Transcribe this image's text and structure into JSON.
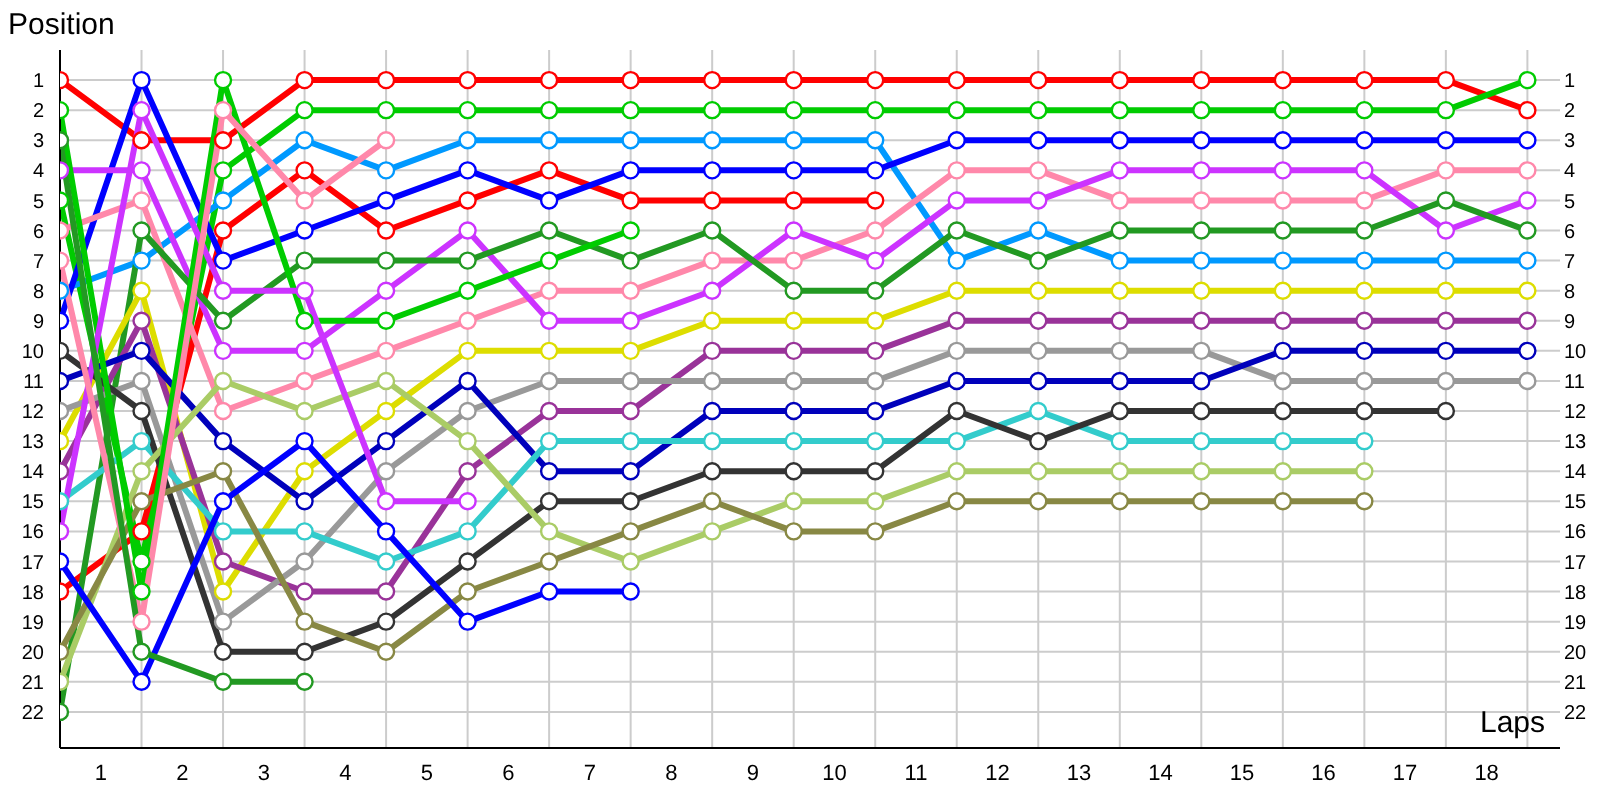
{
  "chart_data": {
    "type": "line",
    "xlabel": "Laps",
    "ylabel": "Position",
    "marker": "circle",
    "grid": true,
    "x": [
      0,
      1,
      2,
      3,
      4,
      5,
      6,
      7,
      8,
      9,
      10,
      11,
      12,
      13,
      14,
      15,
      16,
      17,
      18
    ],
    "xlim": [
      0,
      18.4
    ],
    "xticks": [
      {
        "value": 0,
        "label": null
      },
      {
        "value": 0.5,
        "label": "1"
      },
      {
        "value": 1,
        "label": null
      },
      {
        "value": 1.5,
        "label": "2"
      },
      {
        "value": 2,
        "label": null
      },
      {
        "value": 2.5,
        "label": "3"
      },
      {
        "value": 3,
        "label": null
      },
      {
        "value": 3.5,
        "label": "4"
      },
      {
        "value": 4,
        "label": null
      },
      {
        "value": 4.5,
        "label": "5"
      },
      {
        "value": 5,
        "label": null
      },
      {
        "value": 5.5,
        "label": "6"
      },
      {
        "value": 6,
        "label": null
      },
      {
        "value": 6.5,
        "label": "7"
      },
      {
        "value": 7,
        "label": null
      },
      {
        "value": 7.5,
        "label": "8"
      },
      {
        "value": 8,
        "label": null
      },
      {
        "value": 8.5,
        "label": "9"
      },
      {
        "value": 9,
        "label": null
      },
      {
        "value": 9.5,
        "label": "10"
      },
      {
        "value": 10,
        "label": null
      },
      {
        "value": 10.5,
        "label": "11"
      },
      {
        "value": 11,
        "label": null
      },
      {
        "value": 11.5,
        "label": "12"
      },
      {
        "value": 12,
        "label": null
      },
      {
        "value": 12.5,
        "label": "13"
      },
      {
        "value": 13,
        "label": null
      },
      {
        "value": 13.5,
        "label": "14"
      },
      {
        "value": 14,
        "label": null
      },
      {
        "value": 14.5,
        "label": "15"
      },
      {
        "value": 15,
        "label": null
      },
      {
        "value": 15.5,
        "label": "16"
      },
      {
        "value": 16,
        "label": null
      },
      {
        "value": 16.5,
        "label": "17"
      },
      {
        "value": 17,
        "label": null
      },
      {
        "value": 17.5,
        "label": "18"
      },
      {
        "value": 18,
        "label": null
      }
    ],
    "ylim": [
      23.2,
      0
    ],
    "yticks": [
      1,
      2,
      3,
      4,
      5,
      6,
      7,
      8,
      9,
      10,
      11,
      12,
      13,
      14,
      15,
      16,
      17,
      18,
      19,
      20,
      21,
      22
    ],
    "y2lim": [
      23.2,
      0
    ],
    "y2ticks": [
      1,
      2,
      3,
      4,
      5,
      6,
      7,
      8,
      9,
      10,
      11,
      12,
      13,
      14,
      15,
      16,
      17,
      18,
      19,
      20,
      21,
      22
    ],
    "series": [
      {
        "color": "#ff0000",
        "values": [
          1,
          3,
          3,
          1,
          1,
          1,
          1,
          1,
          1,
          1,
          1,
          1,
          1,
          1,
          1,
          1,
          1,
          1,
          2
        ]
      },
      {
        "color": "#00cc00",
        "values": [
          5,
          17,
          4,
          2,
          2,
          2,
          2,
          2,
          2,
          2,
          2,
          2,
          2,
          2,
          2,
          2,
          2,
          2,
          1
        ]
      },
      {
        "color": "#ff0000",
        "values": [
          18,
          16,
          6,
          4,
          6,
          5,
          4,
          5,
          5,
          5,
          5,
          null,
          null,
          null,
          null,
          null,
          null,
          null,
          null
        ]
      },
      {
        "color": "#0099ff",
        "values": [
          8,
          7,
          5,
          3,
          4,
          3,
          3,
          3,
          3,
          3,
          3,
          7,
          6,
          7,
          7,
          7,
          7,
          7,
          7
        ]
      },
      {
        "color": "#0000ff",
        "values": [
          9,
          1,
          7,
          6,
          5,
          4,
          5,
          4,
          4,
          4,
          4,
          3,
          3,
          3,
          3,
          3,
          3,
          3,
          3
        ]
      },
      {
        "color": "#ff88aa",
        "values": [
          6,
          5,
          12,
          11,
          10,
          9,
          8,
          8,
          7,
          7,
          6,
          4,
          4,
          5,
          5,
          5,
          5,
          4,
          4
        ]
      },
      {
        "color": "#cc33ff",
        "values": [
          4,
          4,
          10,
          10,
          8,
          6,
          9,
          9,
          8,
          6,
          7,
          5,
          5,
          4,
          4,
          4,
          4,
          6,
          5
        ]
      },
      {
        "color": "#229922",
        "values": [
          22,
          6,
          9,
          7,
          7,
          7,
          6,
          7,
          6,
          8,
          8,
          6,
          7,
          6,
          6,
          6,
          6,
          5,
          6
        ]
      },
      {
        "color": "#dddd00",
        "values": [
          13,
          8,
          18,
          14,
          12,
          10,
          10,
          10,
          9,
          9,
          9,
          8,
          8,
          8,
          8,
          8,
          8,
          8,
          8
        ]
      },
      {
        "color": "#993399",
        "values": [
          14,
          9,
          17,
          18,
          18,
          14,
          12,
          12,
          10,
          10,
          10,
          9,
          9,
          9,
          9,
          9,
          9,
          9,
          9
        ]
      },
      {
        "color": "#999999",
        "values": [
          12,
          11,
          19,
          17,
          14,
          12,
          11,
          11,
          11,
          11,
          11,
          10,
          10,
          10,
          10,
          11,
          11,
          11,
          11
        ]
      },
      {
        "color": "#0000bb",
        "values": [
          11,
          10,
          13,
          15,
          13,
          11,
          14,
          14,
          12,
          12,
          12,
          11,
          11,
          11,
          11,
          10,
          10,
          10,
          10
        ]
      },
      {
        "color": "#33cccc",
        "values": [
          15,
          13,
          16,
          16,
          17,
          16,
          13,
          13,
          13,
          13,
          13,
          13,
          12,
          13,
          13,
          13,
          13,
          null,
          null
        ]
      },
      {
        "color": "#333333",
        "values": [
          10,
          12,
          20,
          20,
          19,
          17,
          15,
          15,
          14,
          14,
          14,
          12,
          13,
          12,
          12,
          12,
          12,
          12,
          null
        ]
      },
      {
        "color": "#aacc66",
        "values": [
          21,
          14,
          11,
          12,
          11,
          13,
          16,
          17,
          16,
          15,
          15,
          14,
          14,
          14,
          14,
          14,
          14,
          null,
          null
        ]
      },
      {
        "color": "#888844",
        "values": [
          20,
          15,
          14,
          19,
          20,
          18,
          17,
          16,
          15,
          16,
          16,
          15,
          15,
          15,
          15,
          15,
          15,
          null,
          null
        ]
      },
      {
        "color": "#00cc00",
        "values": [
          2,
          18,
          1,
          9,
          9,
          8,
          7,
          6,
          null,
          null,
          null,
          null,
          null,
          null,
          null,
          null,
          null,
          null,
          null
        ]
      },
      {
        "color": "#0000ff",
        "values": [
          17,
          21,
          15,
          13,
          16,
          19,
          18,
          18,
          null,
          null,
          null,
          null,
          null,
          null,
          null,
          null,
          null,
          null,
          null
        ]
      },
      {
        "color": "#cc33ff",
        "values": [
          16,
          2,
          8,
          8,
          15,
          15,
          null,
          null,
          null,
          null,
          null,
          null,
          null,
          null,
          null,
          null,
          null,
          null,
          null
        ]
      },
      {
        "color": "#ff88aa",
        "values": [
          7,
          19,
          2,
          5,
          3,
          null,
          null,
          null,
          null,
          null,
          null,
          null,
          null,
          null,
          null,
          null,
          null,
          null,
          null
        ]
      },
      {
        "color": "#229922",
        "values": [
          3,
          20,
          21,
          21,
          null,
          null,
          null,
          null,
          null,
          null,
          null,
          null,
          null,
          null,
          null,
          null,
          null,
          null,
          null
        ]
      }
    ]
  }
}
